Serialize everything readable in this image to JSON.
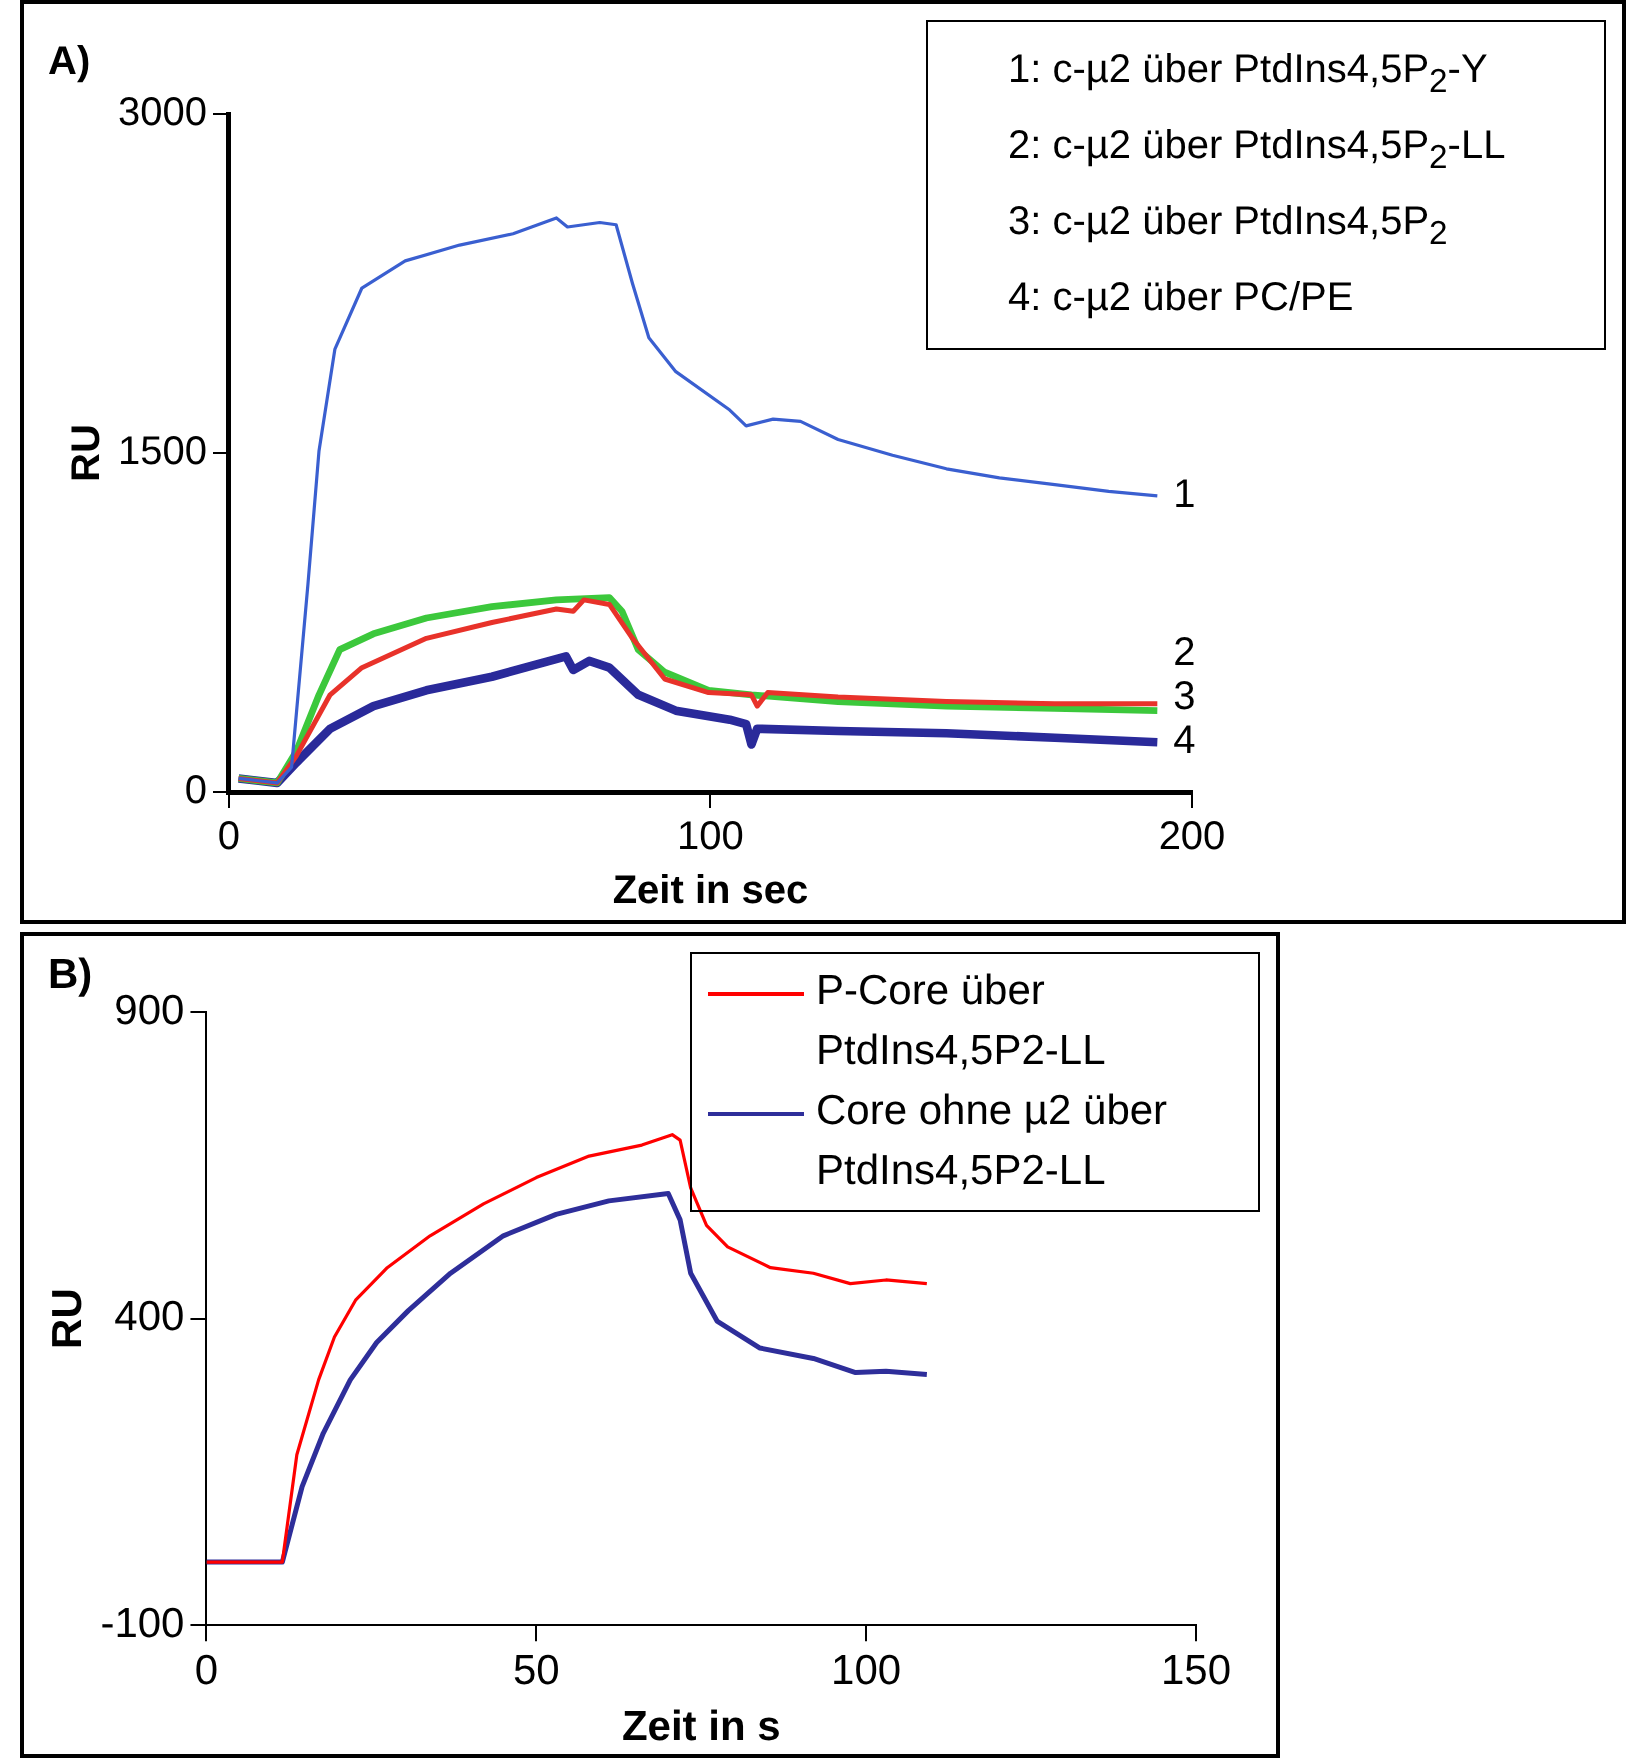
{
  "chart_data": [
    {
      "type": "line",
      "xlabel": "Zeit in sec",
      "ylabel": "RU",
      "xlim": [
        0,
        200
      ],
      "xticks": [
        0,
        100,
        200
      ],
      "ylim": [
        0,
        3000
      ],
      "yticks": [
        0,
        1500,
        3000
      ],
      "annotations": [
        "A)",
        "1: c-µ2 über PtdIns4,5P$_{2}$-Y",
        "2: c-µ2 über PtdIns4,5P$_{2}$-LL",
        "3: c-µ2 über PtdIns4,5P$_{2}$",
        "4: c-µ2 über PC/PE"
      ],
      "series": [
        {
          "name": "1",
          "color": "#3a5fd0",
          "x": [
            2,
            10,
            13,
            16.4,
            18.7,
            22,
            27.6,
            36.6,
            47.9,
            59,
            68,
            70.3,
            77,
            80.4,
            83.8,
            87.2,
            92.8,
            104,
            107.4,
            113,
            118.7,
            126.5,
            137.8,
            149,
            160,
            171.5,
            182.7,
            192.8
          ],
          "values": [
            60,
            40,
            110,
            920,
            1510,
            1960,
            2230,
            2350,
            2420,
            2470,
            2540,
            2500,
            2520,
            2510,
            2250,
            2010,
            1860,
            1690,
            1620,
            1650,
            1640,
            1560,
            1490,
            1430,
            1390,
            1360,
            1330,
            1310
          ]
        },
        {
          "name": "2",
          "color": "#e8322a",
          "x": [
            2,
            10,
            14,
            21,
            27.6,
            41,
            54.6,
            68,
            71.5,
            73.7,
            79,
            83.8,
            90.5,
            99.6,
            108.5,
            109.7,
            111.9,
            126.5,
            149,
            171.5,
            192.8
          ],
          "values": [
            60,
            40,
            160,
            430,
            550,
            680,
            750,
            810,
            800,
            850,
            830,
            680,
            500,
            440,
            430,
            380,
            440,
            420,
            400,
            390,
            390
          ]
        },
        {
          "name": "3",
          "color": "#3cc83c",
          "x": [
            2,
            10,
            14,
            18.7,
            23,
            30,
            41,
            54.6,
            68,
            79,
            81.6,
            85,
            90.5,
            99.6,
            108.5,
            126.5,
            149,
            171.5,
            192.8
          ],
          "values": [
            60,
            40,
            180,
            430,
            630,
            700,
            770,
            820,
            850,
            860,
            800,
            630,
            530,
            450,
            430,
            400,
            380,
            370,
            360
          ]
        },
        {
          "name": "4",
          "color": "#2a2a9a",
          "x": [
            2,
            10,
            14,
            21,
            30,
            41,
            54.6,
            70,
            71.5,
            74.8,
            79,
            85,
            92.8,
            104,
            107.4,
            108.5,
            109.7,
            126.5,
            149,
            171.5,
            192.8
          ],
          "values": [
            60,
            40,
            130,
            280,
            380,
            450,
            510,
            600,
            540,
            580,
            550,
            430,
            360,
            320,
            300,
            210,
            280,
            270,
            260,
            240,
            220
          ]
        }
      ]
    },
    {
      "type": "line",
      "xlabel": "Zeit in s",
      "ylabel": "RU",
      "xlim": [
        0,
        150
      ],
      "xticks": [
        0,
        50,
        100,
        150
      ],
      "ylim": [
        -100,
        900
      ],
      "yticks": [
        -100,
        400,
        900
      ],
      "legend": "top right",
      "annotations": [
        "B)"
      ],
      "series": [
        {
          "name": "P-Core über PtdIns4,5P2-LL",
          "color": "#ff0000",
          "x": [
            0,
            11.5,
            13.7,
            17,
            19.4,
            22.6,
            27.4,
            33.9,
            42,
            50,
            58,
            66,
            70.6,
            71.8,
            73.4,
            75.8,
            79,
            85.5,
            92,
            97.6,
            103,
            109.2
          ],
          "values": [
            3,
            3,
            178,
            300,
            370,
            430,
            483,
            535,
            587,
            630,
            665,
            683,
            700,
            691,
            613,
            552,
            517,
            483,
            474,
            457,
            463,
            457
          ]
        },
        {
          "name": "Core ohne µ2 über PtdIns4,5P2-LL",
          "color": "#2e2e9a",
          "x": [
            0,
            11.5,
            14.5,
            17.7,
            21.8,
            25.8,
            30.6,
            37,
            45,
            53,
            61,
            70,
            71.8,
            73.4,
            77.4,
            83.9,
            92,
            98.4,
            103,
            109.2
          ],
          "values": [
            3,
            3,
            126,
            213,
            300,
            361,
            413,
            474,
            535,
            570,
            592,
            604,
            561,
            474,
            396,
            352,
            335,
            312,
            314,
            309
          ]
        }
      ]
    }
  ]
}
